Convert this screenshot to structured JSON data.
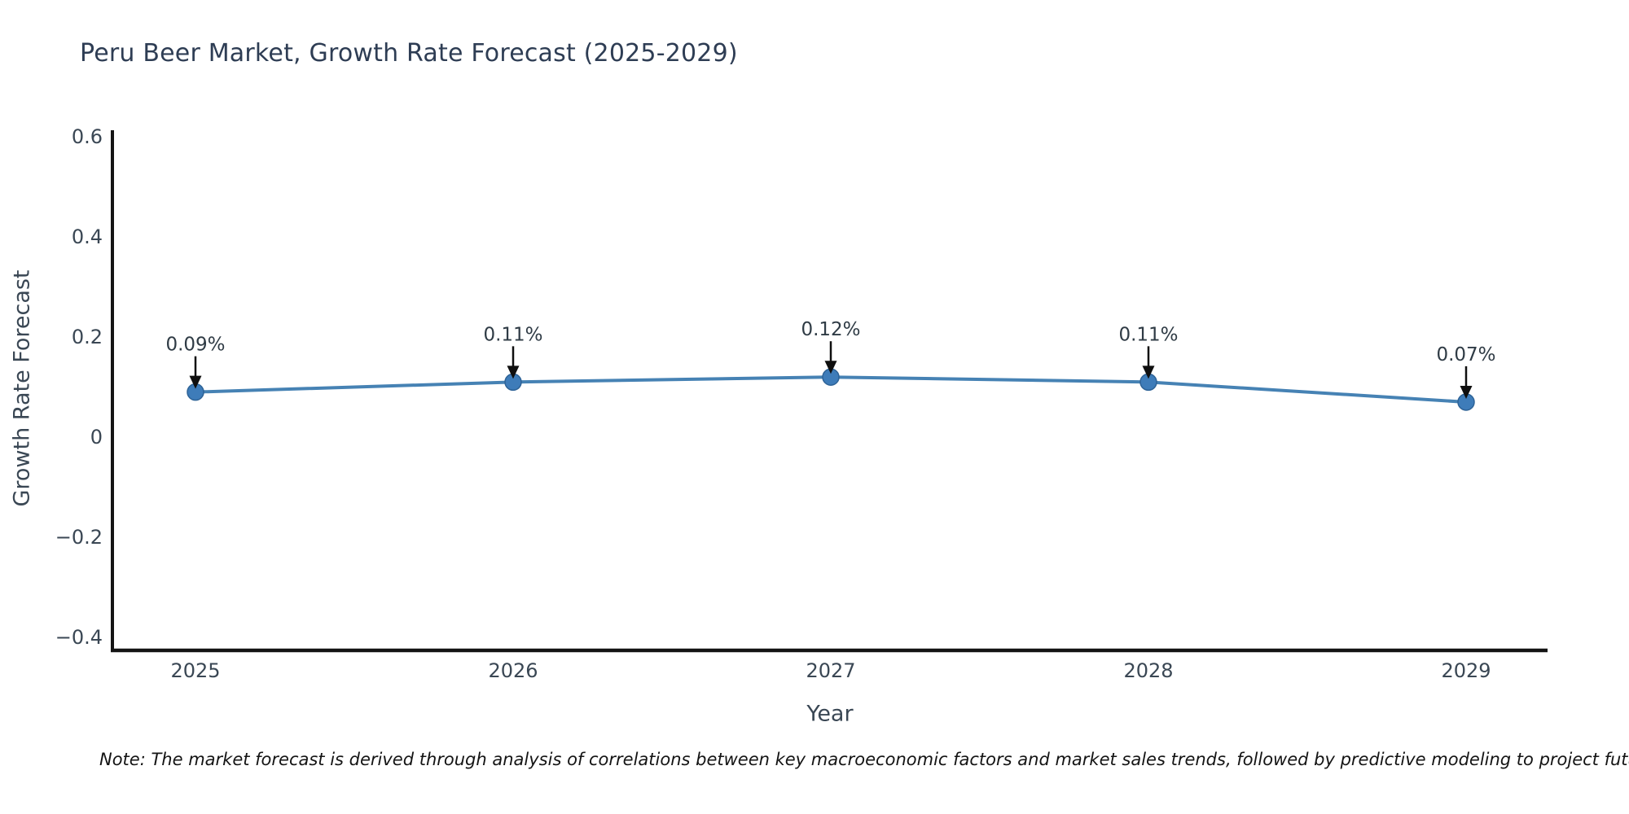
{
  "chart_data": {
    "type": "line",
    "title": "Peru Beer Market, Growth Rate Forecast (2025-2029)",
    "xlabel": "Year",
    "ylabel": "Growth Rate Forecast",
    "note": "Note: The market forecast is derived through analysis of correlations between key macroeconomic factors and market sales trends, followed by predictive modeling to project future sales",
    "x": [
      2025,
      2026,
      2027,
      2028,
      2029
    ],
    "values": [
      0.09,
      0.11,
      0.12,
      0.11,
      0.07
    ],
    "point_labels": [
      "0.09%",
      "0.11%",
      "0.12%",
      "0.11%",
      "0.07%"
    ],
    "yticks": [
      {
        "label": "0.6",
        "value": 0.6
      },
      {
        "label": "0.4",
        "value": 0.4
      },
      {
        "label": "0.2",
        "value": 0.2
      },
      {
        "label": "0",
        "value": 0.0
      },
      {
        "label": "−0.2",
        "value": -0.2
      },
      {
        "label": "−0.4",
        "value": -0.4
      }
    ],
    "ylim": [
      -0.43,
      0.61
    ],
    "grid": false,
    "legend": null,
    "marker_style": "circle",
    "annotation_arrows": "down",
    "colors": {
      "line": "#4682b4",
      "marker": "#3e7cb9",
      "marker_edge": "#2e6397",
      "arrow": "#0f0f0f",
      "spine": "#141414",
      "title": "#2e3d54",
      "tick": "#3a4754",
      "axis_label": "#3a4754",
      "annotation": "#2f3b45",
      "note": "#141414",
      "background": "#ffffff"
    }
  }
}
